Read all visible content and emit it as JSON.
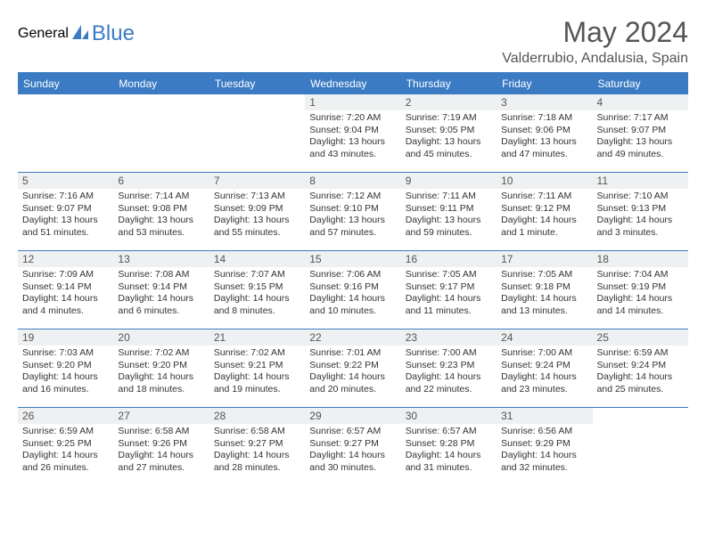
{
  "logo": {
    "text1": "General",
    "text2": "Blue"
  },
  "title": "May 2024",
  "location": "Valderrubio, Andalusia, Spain",
  "colors": {
    "header_bg": "#3b7bc4",
    "header_text": "#ffffff",
    "daynum_bg": "#eef0f2",
    "border": "#3b7bc4",
    "text": "#333333",
    "title_text": "#555555"
  },
  "weekdays": [
    "Sunday",
    "Monday",
    "Tuesday",
    "Wednesday",
    "Thursday",
    "Friday",
    "Saturday"
  ],
  "weeks": [
    [
      {
        "n": "",
        "sr": "",
        "ss": "",
        "dl": ""
      },
      {
        "n": "",
        "sr": "",
        "ss": "",
        "dl": ""
      },
      {
        "n": "",
        "sr": "",
        "ss": "",
        "dl": ""
      },
      {
        "n": "1",
        "sr": "Sunrise: 7:20 AM",
        "ss": "Sunset: 9:04 PM",
        "dl": "Daylight: 13 hours and 43 minutes."
      },
      {
        "n": "2",
        "sr": "Sunrise: 7:19 AM",
        "ss": "Sunset: 9:05 PM",
        "dl": "Daylight: 13 hours and 45 minutes."
      },
      {
        "n": "3",
        "sr": "Sunrise: 7:18 AM",
        "ss": "Sunset: 9:06 PM",
        "dl": "Daylight: 13 hours and 47 minutes."
      },
      {
        "n": "4",
        "sr": "Sunrise: 7:17 AM",
        "ss": "Sunset: 9:07 PM",
        "dl": "Daylight: 13 hours and 49 minutes."
      }
    ],
    [
      {
        "n": "5",
        "sr": "Sunrise: 7:16 AM",
        "ss": "Sunset: 9:07 PM",
        "dl": "Daylight: 13 hours and 51 minutes."
      },
      {
        "n": "6",
        "sr": "Sunrise: 7:14 AM",
        "ss": "Sunset: 9:08 PM",
        "dl": "Daylight: 13 hours and 53 minutes."
      },
      {
        "n": "7",
        "sr": "Sunrise: 7:13 AM",
        "ss": "Sunset: 9:09 PM",
        "dl": "Daylight: 13 hours and 55 minutes."
      },
      {
        "n": "8",
        "sr": "Sunrise: 7:12 AM",
        "ss": "Sunset: 9:10 PM",
        "dl": "Daylight: 13 hours and 57 minutes."
      },
      {
        "n": "9",
        "sr": "Sunrise: 7:11 AM",
        "ss": "Sunset: 9:11 PM",
        "dl": "Daylight: 13 hours and 59 minutes."
      },
      {
        "n": "10",
        "sr": "Sunrise: 7:11 AM",
        "ss": "Sunset: 9:12 PM",
        "dl": "Daylight: 14 hours and 1 minute."
      },
      {
        "n": "11",
        "sr": "Sunrise: 7:10 AM",
        "ss": "Sunset: 9:13 PM",
        "dl": "Daylight: 14 hours and 3 minutes."
      }
    ],
    [
      {
        "n": "12",
        "sr": "Sunrise: 7:09 AM",
        "ss": "Sunset: 9:14 PM",
        "dl": "Daylight: 14 hours and 4 minutes."
      },
      {
        "n": "13",
        "sr": "Sunrise: 7:08 AM",
        "ss": "Sunset: 9:14 PM",
        "dl": "Daylight: 14 hours and 6 minutes."
      },
      {
        "n": "14",
        "sr": "Sunrise: 7:07 AM",
        "ss": "Sunset: 9:15 PM",
        "dl": "Daylight: 14 hours and 8 minutes."
      },
      {
        "n": "15",
        "sr": "Sunrise: 7:06 AM",
        "ss": "Sunset: 9:16 PM",
        "dl": "Daylight: 14 hours and 10 minutes."
      },
      {
        "n": "16",
        "sr": "Sunrise: 7:05 AM",
        "ss": "Sunset: 9:17 PM",
        "dl": "Daylight: 14 hours and 11 minutes."
      },
      {
        "n": "17",
        "sr": "Sunrise: 7:05 AM",
        "ss": "Sunset: 9:18 PM",
        "dl": "Daylight: 14 hours and 13 minutes."
      },
      {
        "n": "18",
        "sr": "Sunrise: 7:04 AM",
        "ss": "Sunset: 9:19 PM",
        "dl": "Daylight: 14 hours and 14 minutes."
      }
    ],
    [
      {
        "n": "19",
        "sr": "Sunrise: 7:03 AM",
        "ss": "Sunset: 9:20 PM",
        "dl": "Daylight: 14 hours and 16 minutes."
      },
      {
        "n": "20",
        "sr": "Sunrise: 7:02 AM",
        "ss": "Sunset: 9:20 PM",
        "dl": "Daylight: 14 hours and 18 minutes."
      },
      {
        "n": "21",
        "sr": "Sunrise: 7:02 AM",
        "ss": "Sunset: 9:21 PM",
        "dl": "Daylight: 14 hours and 19 minutes."
      },
      {
        "n": "22",
        "sr": "Sunrise: 7:01 AM",
        "ss": "Sunset: 9:22 PM",
        "dl": "Daylight: 14 hours and 20 minutes."
      },
      {
        "n": "23",
        "sr": "Sunrise: 7:00 AM",
        "ss": "Sunset: 9:23 PM",
        "dl": "Daylight: 14 hours and 22 minutes."
      },
      {
        "n": "24",
        "sr": "Sunrise: 7:00 AM",
        "ss": "Sunset: 9:24 PM",
        "dl": "Daylight: 14 hours and 23 minutes."
      },
      {
        "n": "25",
        "sr": "Sunrise: 6:59 AM",
        "ss": "Sunset: 9:24 PM",
        "dl": "Daylight: 14 hours and 25 minutes."
      }
    ],
    [
      {
        "n": "26",
        "sr": "Sunrise: 6:59 AM",
        "ss": "Sunset: 9:25 PM",
        "dl": "Daylight: 14 hours and 26 minutes."
      },
      {
        "n": "27",
        "sr": "Sunrise: 6:58 AM",
        "ss": "Sunset: 9:26 PM",
        "dl": "Daylight: 14 hours and 27 minutes."
      },
      {
        "n": "28",
        "sr": "Sunrise: 6:58 AM",
        "ss": "Sunset: 9:27 PM",
        "dl": "Daylight: 14 hours and 28 minutes."
      },
      {
        "n": "29",
        "sr": "Sunrise: 6:57 AM",
        "ss": "Sunset: 9:27 PM",
        "dl": "Daylight: 14 hours and 30 minutes."
      },
      {
        "n": "30",
        "sr": "Sunrise: 6:57 AM",
        "ss": "Sunset: 9:28 PM",
        "dl": "Daylight: 14 hours and 31 minutes."
      },
      {
        "n": "31",
        "sr": "Sunrise: 6:56 AM",
        "ss": "Sunset: 9:29 PM",
        "dl": "Daylight: 14 hours and 32 minutes."
      },
      {
        "n": "",
        "sr": "",
        "ss": "",
        "dl": ""
      }
    ]
  ]
}
